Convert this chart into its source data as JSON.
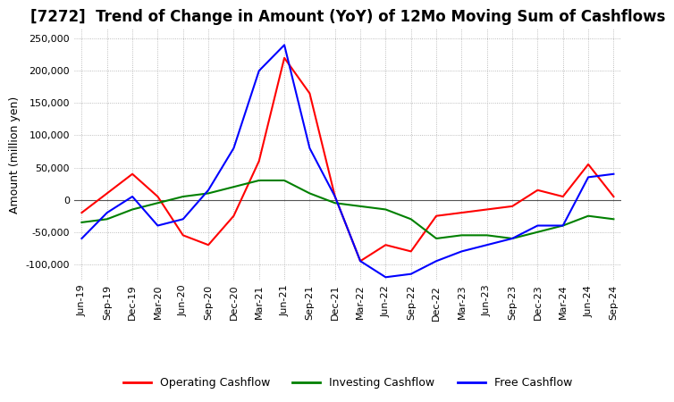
{
  "title": "[7272]  Trend of Change in Amount (YoY) of 12Mo Moving Sum of Cashflows",
  "ylabel": "Amount (million yen)",
  "legend": [
    "Operating Cashflow",
    "Investing Cashflow",
    "Free Cashflow"
  ],
  "legend_colors": [
    "#ff0000",
    "#008000",
    "#0000ff"
  ],
  "x_labels": [
    "Jun-19",
    "Sep-19",
    "Dec-19",
    "Mar-20",
    "Jun-20",
    "Sep-20",
    "Dec-20",
    "Mar-21",
    "Jun-21",
    "Sep-21",
    "Dec-21",
    "Mar-22",
    "Jun-22",
    "Sep-22",
    "Dec-22",
    "Mar-23",
    "Jun-23",
    "Sep-23",
    "Dec-23",
    "Mar-24",
    "Jun-24",
    "Sep-24"
  ],
  "operating": [
    -20000,
    10000,
    40000,
    5000,
    -55000,
    -70000,
    -25000,
    60000,
    220000,
    165000,
    5000,
    -95000,
    -70000,
    -80000,
    -25000,
    -20000,
    -15000,
    -10000,
    15000,
    5000,
    55000,
    5000
  ],
  "investing": [
    -35000,
    -30000,
    -15000,
    -5000,
    5000,
    10000,
    20000,
    30000,
    30000,
    10000,
    -5000,
    -10000,
    -15000,
    -30000,
    -60000,
    -55000,
    -55000,
    -60000,
    -50000,
    -40000,
    -25000,
    -30000
  ],
  "free": [
    -60000,
    -20000,
    5000,
    -40000,
    -30000,
    15000,
    80000,
    200000,
    240000,
    80000,
    5000,
    -95000,
    -120000,
    -115000,
    -95000,
    -80000,
    -70000,
    -60000,
    -40000,
    -40000,
    35000,
    40000
  ],
  "ylim": [
    -125000,
    265000
  ],
  "yticks": [
    -100000,
    -50000,
    0,
    50000,
    100000,
    150000,
    200000,
    250000
  ],
  "background_color": "#ffffff",
  "grid_color": "#aaaaaa",
  "title_fontsize": 12,
  "axis_fontsize": 9,
  "tick_fontsize": 8
}
